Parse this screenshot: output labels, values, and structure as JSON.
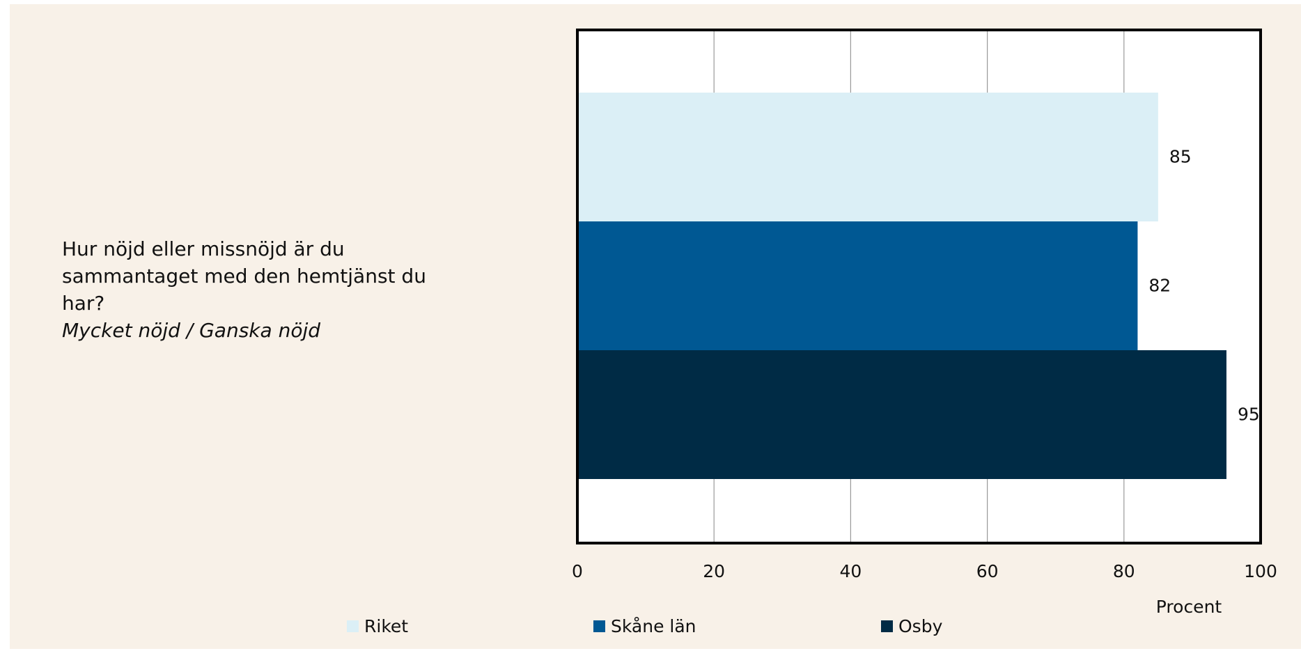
{
  "chart_data": {
    "type": "bar",
    "orientation": "horizontal",
    "categories": [
      "Hur nöjd eller missnöjd är du sammantaget med den hemtjänst du har?"
    ],
    "subtitle": "Mycket nöjd / Ganska nöjd",
    "series": [
      {
        "name": "Riket",
        "color": "#dbeff6",
        "values": [
          85
        ]
      },
      {
        "name": "Skåne län",
        "color": "#005893",
        "values": [
          82
        ]
      },
      {
        "name": "Osby",
        "color": "#002b45",
        "values": [
          95
        ]
      }
    ],
    "xlabel": "Procent",
    "xlim": [
      0,
      100
    ],
    "xticks": [
      0,
      20,
      40,
      60,
      80,
      100
    ],
    "grid": true
  }
}
